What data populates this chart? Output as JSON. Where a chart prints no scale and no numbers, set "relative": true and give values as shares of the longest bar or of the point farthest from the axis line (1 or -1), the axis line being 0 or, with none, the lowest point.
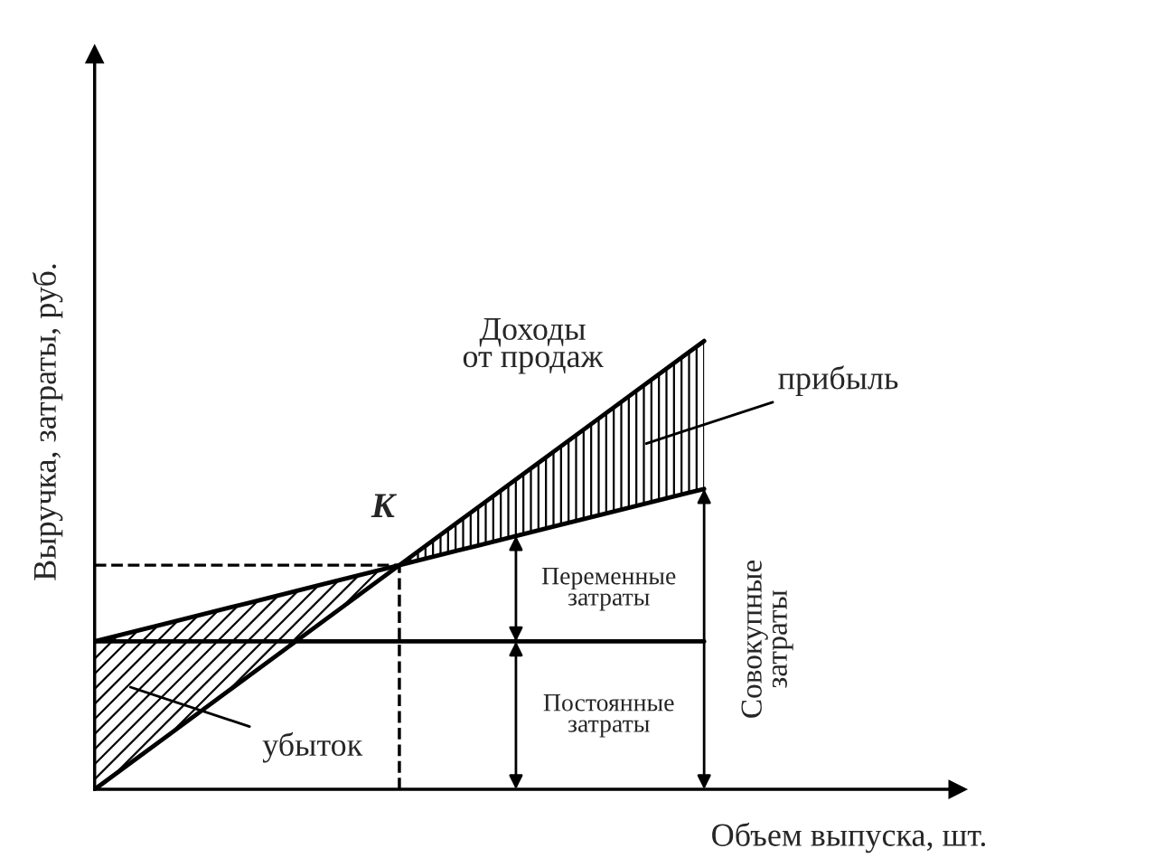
{
  "chart_data": {
    "type": "line",
    "relative": true,
    "xlabel": "Объем выпуска, шт.",
    "ylabel": "Выручка, затраты, руб.",
    "categories": [
      null,
      null,
      null,
      null,
      null,
      null,
      null,
      null,
      null,
      null,
      null
    ],
    "grid": false,
    "legend": false,
    "line_style": "solid",
    "marker": "none",
    "series": [
      {
        "color": "#000000",
        "values": [
          0,
          0.125,
          0.25,
          0.375,
          0.5,
          0.625,
          0.75,
          0.875,
          1,
          null,
          null
        ],
        "lower": [
          null,
          null,
          null,
          null,
          0.5,
          0.5425,
          0.585,
          0.6275,
          0.67,
          null,
          null
        ],
        "upper": [
          null,
          null,
          null,
          null,
          0.5,
          0.625,
          0.75,
          0.875,
          1,
          null,
          null
        ]
      },
      {
        "color": "#000000",
        "values": [
          0.33,
          0.3725,
          0.415,
          0.4575,
          0.5,
          0.5425,
          0.585,
          0.6275,
          0.67,
          null,
          null
        ],
        "lower": [
          0,
          0.125,
          0.25,
          0.375,
          0.5,
          null,
          null,
          null,
          null,
          null,
          null
        ],
        "upper": [
          0.33,
          0.3725,
          0.415,
          0.4575,
          0.5,
          null,
          null,
          null,
          null,
          null,
          null
        ]
      },
      {
        "color": "#000000",
        "values": [
          0.33,
          0.33,
          0.33,
          0.33,
          0.33,
          0.33,
          0.33,
          0.33,
          0.33,
          null,
          null
        ]
      },
      {
        "color": "#000000",
        "line_style": "dashed",
        "values": [
          0.5,
          0.5,
          0.5,
          0.5,
          0.5,
          null,
          null,
          null,
          null,
          null,
          null
        ]
      }
    ],
    "annotations": [
      "Доходы\nот продаж",
      "прибыль",
      "убыток",
      "K",
      "Переменные\nзатраты",
      "Постоянные\nзатраты",
      "Совокупные\nзатраты"
    ]
  }
}
